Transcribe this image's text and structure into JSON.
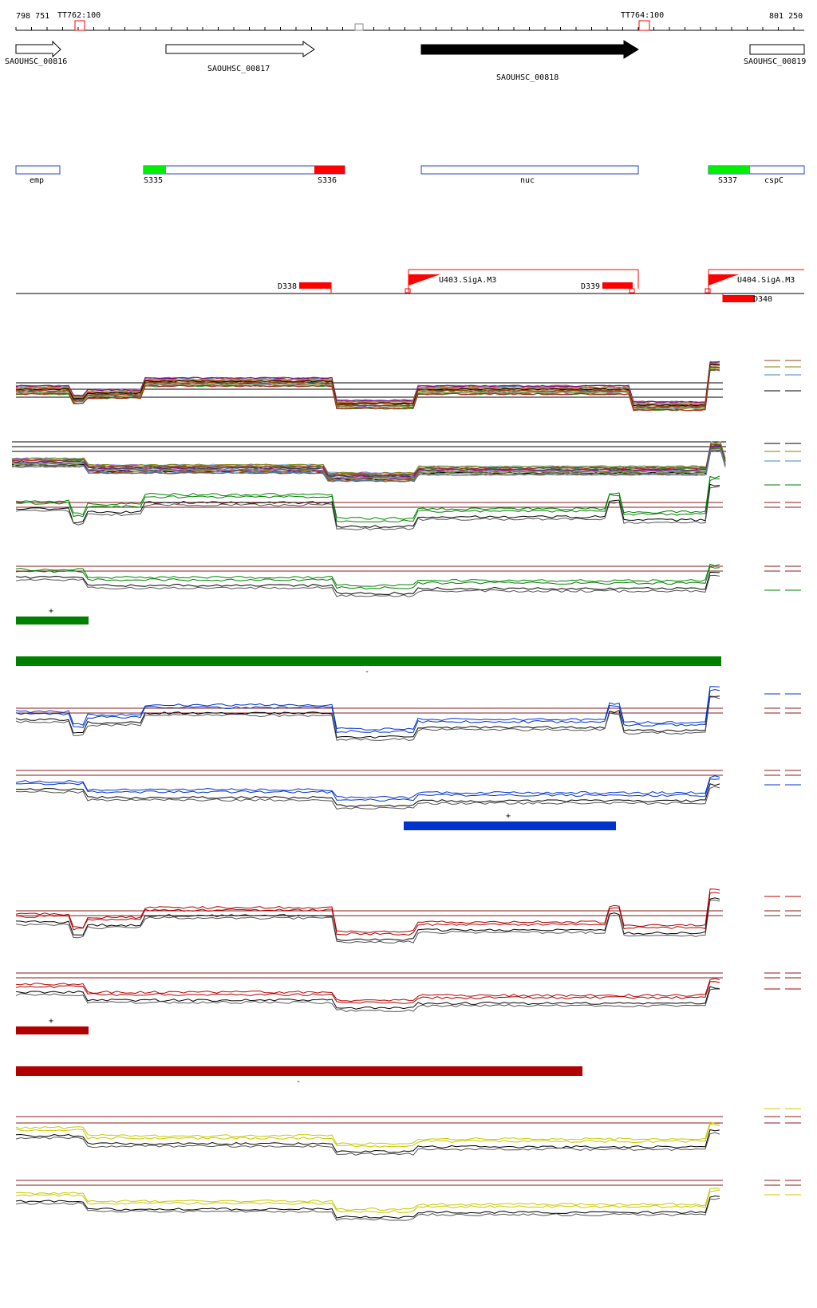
{
  "ruler": {
    "start_label": "798 751",
    "end_label": "801 250",
    "terminators": [
      {
        "label": "TT762:100"
      },
      {
        "label": "TT764:100"
      }
    ]
  },
  "genes": [
    {
      "label": "SAOUHSC_00816",
      "strand": "+",
      "highlight": false
    },
    {
      "label": "SAOUHSC_00817",
      "strand": "+",
      "highlight": false
    },
    {
      "label": "SAOUHSC_00818",
      "strand": "+",
      "highlight": true
    },
    {
      "label": "SAOUHSC_00819",
      "strand": "+",
      "highlight": false
    }
  ],
  "features": [
    {
      "label": "emp",
      "kind": "gene"
    },
    {
      "label": "S335",
      "kind": "segment-start"
    },
    {
      "label": "S336",
      "kind": "segment-end"
    },
    {
      "label": "nuc",
      "kind": "gene"
    },
    {
      "label": "S337",
      "kind": "segment-start"
    },
    {
      "label": "cspC",
      "kind": "gene"
    }
  ],
  "regulatory": {
    "promoters": [
      {
        "label": "U403.SigA.M3"
      },
      {
        "label": "U404.SigA.M3"
      }
    ],
    "downstream": [
      {
        "label": "D338"
      },
      {
        "label": "D339"
      },
      {
        "label": "D340"
      }
    ]
  },
  "expression_tracks": [
    {
      "name": "green-plus",
      "color": "#008000",
      "strand": "+"
    },
    {
      "name": "green-minus",
      "color": "#008000",
      "strand": "-"
    },
    {
      "name": "blue-plus",
      "color": "#0033cc",
      "strand": "+"
    },
    {
      "name": "red-plus",
      "color": "#b00000",
      "strand": "+"
    },
    {
      "name": "red-minus",
      "color": "#b00000",
      "strand": "-"
    },
    {
      "name": "yellow",
      "color": "#c8c800",
      "strand": ""
    }
  ],
  "colors": {
    "gene_outline": "#000000",
    "feature_outline": "#2244cc",
    "segment_start": "#00ee00",
    "segment_end": "#ff0000",
    "regulatory": "#ff0000",
    "threshold": "#8b1a1a"
  }
}
